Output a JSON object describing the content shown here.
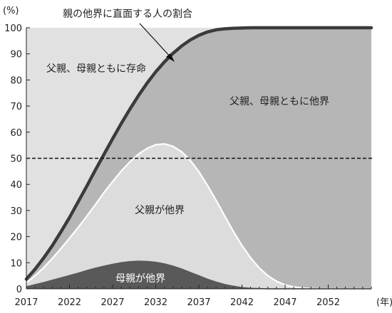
{
  "chart_data": {
    "type": "area",
    "y_unit_label": "(%)",
    "x_unit_label": "(年)",
    "xlim": [
      2017,
      2057
    ],
    "ylim": [
      0,
      100
    ],
    "x_ticks": [
      2017,
      2022,
      2027,
      2032,
      2037,
      2042,
      2047,
      2052
    ],
    "y_ticks": [
      0,
      10,
      20,
      30,
      40,
      50,
      60,
      70,
      80,
      90,
      100
    ],
    "reference_line": {
      "y": 50,
      "style": "dashed"
    },
    "legend": "none",
    "grid": false,
    "x": [
      2017,
      2018,
      2019,
      2020,
      2021,
      2022,
      2023,
      2024,
      2025,
      2026,
      2027,
      2028,
      2029,
      2030,
      2031,
      2032,
      2033,
      2034,
      2035,
      2036,
      2037,
      2038,
      2039,
      2040,
      2041,
      2042,
      2043,
      2044,
      2045,
      2046,
      2047,
      2048,
      2049,
      2050,
      2051,
      2052,
      2053,
      2054,
      2055,
      2056,
      2057
    ],
    "series": [
      {
        "name": "親の他界に直面する人の割合",
        "values": [
          3.7,
          7.5,
          11.8,
          16.5,
          21.8,
          27.3,
          33.3,
          39.3,
          45.5,
          51.5,
          57.5,
          63.3,
          68.8,
          74.0,
          78.8,
          83.1,
          86.9,
          90.2,
          93.0,
          95.3,
          97.1,
          98.4,
          99.2,
          99.6,
          99.8,
          99.9,
          100,
          100,
          100,
          100,
          100,
          100,
          100,
          100,
          100,
          100,
          100,
          100,
          100,
          100,
          100
        ]
      },
      {
        "name": "母親が他界",
        "values": [
          0.8,
          1.6,
          2.4,
          3.3,
          4.2,
          5.1,
          6.0,
          7.0,
          7.9,
          8.7,
          9.4,
          10.0,
          10.4,
          10.6,
          10.5,
          10.2,
          9.6,
          8.7,
          7.6,
          6.3,
          5.0,
          3.7,
          2.6,
          1.7,
          1.0,
          0.5,
          0.2,
          0.1,
          0,
          0,
          0,
          0,
          0,
          0,
          0,
          0,
          0,
          0,
          0,
          0,
          0
        ]
      },
      {
        "name": "父親が他界",
        "values": [
          2.3,
          5.0,
          8.1,
          11.6,
          15.4,
          19.4,
          23.5,
          27.8,
          32.3,
          36.9,
          41.1,
          45.1,
          48.6,
          51.6,
          53.8,
          55.2,
          55.5,
          54.6,
          52.5,
          49.2,
          44.9,
          39.6,
          33.9,
          27.9,
          22.0,
          16.6,
          11.9,
          8.0,
          5.0,
          2.9,
          1.5,
          0.7,
          0.3,
          0.1,
          0,
          0,
          0,
          0,
          0,
          0,
          0
        ]
      }
    ],
    "region_labels": {
      "both_alive": "父親、母親ともに存命",
      "both_deceased": "父親、母親ともに他界",
      "father_deceased": "父親が他界",
      "mother_deceased": "母親が他界"
    },
    "annotation": "親の他界に直面する人の割合",
    "colors": {
      "both_alive": "#e1e1e1",
      "both_deceased": "#b6b6b7",
      "father_deceased": "#dcdcdc",
      "mother_deceased": "#595959",
      "curve": "#3b3b3b",
      "father_outline": "#ffffff"
    }
  }
}
